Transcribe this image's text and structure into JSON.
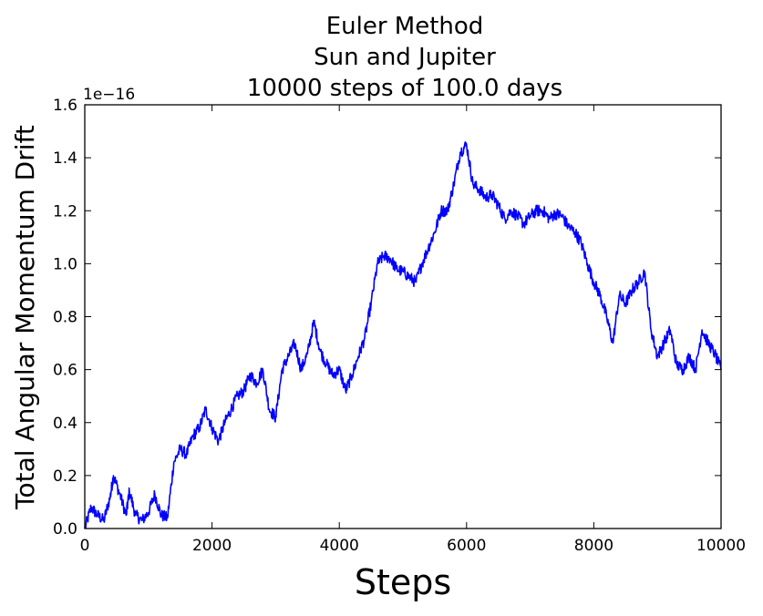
{
  "chart_data": {
    "type": "line",
    "title": [
      "Euler Method",
      "Sun and Jupiter",
      "10000 steps of 100.0 days"
    ],
    "xlabel": "Steps",
    "ylabel": "Total Angular Momentum Drift",
    "y_offset_label": "1e−16",
    "xlim": [
      0,
      10000
    ],
    "ylim": [
      0.0,
      1.6
    ],
    "x_ticks": [
      0,
      2000,
      4000,
      6000,
      8000,
      10000
    ],
    "x_tick_labels": [
      "0",
      "2000",
      "4000",
      "6000",
      "8000",
      "10000"
    ],
    "y_ticks": [
      0.0,
      0.2,
      0.4,
      0.6,
      0.8,
      1.0,
      1.2,
      1.4,
      1.6
    ],
    "y_tick_labels": [
      "0.0",
      "0.2",
      "0.4",
      "0.6",
      "0.8",
      "1.0",
      "1.2",
      "1.4",
      "1.6"
    ],
    "grid": false,
    "series": [
      {
        "color": "#0000ff",
        "x": [
          0,
          100,
          200,
          300,
          400,
          450,
          550,
          650,
          700,
          800,
          900,
          1000,
          1100,
          1200,
          1300,
          1400,
          1500,
          1600,
          1700,
          1800,
          1900,
          2000,
          2100,
          2200,
          2300,
          2400,
          2500,
          2600,
          2700,
          2800,
          2900,
          3000,
          3100,
          3200,
          3300,
          3400,
          3500,
          3600,
          3700,
          3800,
          3900,
          4000,
          4100,
          4200,
          4300,
          4400,
          4500,
          4600,
          4700,
          4800,
          4900,
          5000,
          5100,
          5200,
          5300,
          5400,
          5500,
          5600,
          5700,
          5800,
          5900,
          6000,
          6100,
          6200,
          6300,
          6400,
          6500,
          6600,
          6700,
          6800,
          6900,
          7000,
          7100,
          7200,
          7300,
          7400,
          7500,
          7600,
          7700,
          7800,
          7900,
          8000,
          8100,
          8200,
          8300,
          8400,
          8500,
          8600,
          8700,
          8800,
          8900,
          9000,
          9100,
          9200,
          9300,
          9400,
          9500,
          9600,
          9700,
          9800,
          9900,
          10000
        ],
        "y": [
          0.0,
          0.08,
          0.05,
          0.03,
          0.12,
          0.2,
          0.13,
          0.05,
          0.14,
          0.05,
          0.03,
          0.06,
          0.13,
          0.05,
          0.04,
          0.25,
          0.3,
          0.28,
          0.35,
          0.38,
          0.45,
          0.38,
          0.33,
          0.4,
          0.45,
          0.5,
          0.52,
          0.58,
          0.55,
          0.6,
          0.45,
          0.42,
          0.6,
          0.65,
          0.7,
          0.6,
          0.66,
          0.78,
          0.67,
          0.62,
          0.58,
          0.6,
          0.52,
          0.58,
          0.65,
          0.72,
          0.85,
          1.0,
          1.03,
          1.02,
          0.98,
          0.97,
          0.95,
          0.93,
          1.0,
          1.06,
          1.12,
          1.2,
          1.2,
          1.3,
          1.42,
          1.45,
          1.3,
          1.28,
          1.25,
          1.26,
          1.22,
          1.17,
          1.2,
          1.18,
          1.15,
          1.18,
          1.2,
          1.2,
          1.17,
          1.19,
          1.18,
          1.14,
          1.12,
          1.08,
          1.0,
          0.93,
          0.88,
          0.8,
          0.7,
          0.88,
          0.85,
          0.9,
          0.93,
          0.97,
          0.75,
          0.65,
          0.7,
          0.75,
          0.62,
          0.6,
          0.65,
          0.6,
          0.75,
          0.7,
          0.66,
          0.6
        ]
      }
    ]
  }
}
